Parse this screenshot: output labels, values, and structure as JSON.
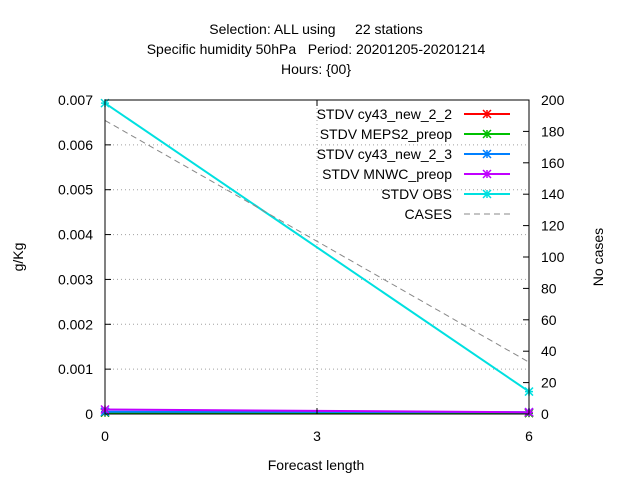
{
  "chart_data": {
    "type": "line",
    "title_lines": [
      "Selection: ALL using     22 stations",
      "Specific humidity 50hPa   Period: 20201205-20201214",
      "Hours: {00}"
    ],
    "xlabel": "Forecast length",
    "ylabel": "g/Kg",
    "y2label": "No cases",
    "x": [
      0,
      3,
      6
    ],
    "xlim": [
      0,
      6
    ],
    "ylim": [
      0,
      0.007
    ],
    "y2lim": [
      0,
      200
    ],
    "x_ticks": [
      "0",
      "3",
      "6"
    ],
    "y_ticks": [
      "0",
      "0.001",
      "0.002",
      "0.003",
      "0.004",
      "0.005",
      "0.006",
      "0.007"
    ],
    "y2_ticks": [
      "0",
      "20",
      "40",
      "60",
      "80",
      "100",
      "120",
      "140",
      "160",
      "180",
      "200"
    ],
    "grid": true,
    "legend_position": "top-right",
    "series": [
      {
        "name": "STDV cy43_new_2_2",
        "color": "#ff0000",
        "axis": "y",
        "x": [
          0,
          6
        ],
        "values": [
          3e-05,
          2e-05
        ]
      },
      {
        "name": "STDV MEPS2_preop",
        "color": "#00c000",
        "axis": "y",
        "x": [
          0,
          6
        ],
        "values": [
          3e-05,
          2e-05
        ]
      },
      {
        "name": "STDV cy43_new_2_3",
        "color": "#0080ff",
        "axis": "y",
        "x": [
          0,
          6
        ],
        "values": [
          5e-05,
          4e-05
        ]
      },
      {
        "name": "STDV MNWC_preop",
        "color": "#c000ff",
        "axis": "y",
        "x": [
          0,
          6
        ],
        "values": [
          0.0001,
          4e-05
        ]
      },
      {
        "name": "STDV OBS",
        "color": "#00e0e0",
        "axis": "y",
        "x": [
          0,
          6
        ],
        "values": [
          0.00693,
          0.0005
        ]
      },
      {
        "name": "CASES",
        "color": "#888888",
        "axis": "y2",
        "dashed": true,
        "x": [
          0,
          6
        ],
        "values": [
          187,
          33
        ]
      }
    ]
  }
}
